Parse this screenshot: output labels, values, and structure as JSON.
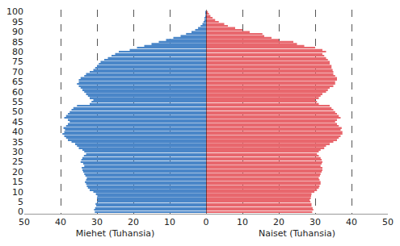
{
  "chart_data": [
    {
      "type": "bar",
      "orientation": "horizontal",
      "x_label": "Miehet (Tuhansia)",
      "color": "#4a86c8",
      "grid": true,
      "x": [
        0,
        1,
        2,
        3,
        4,
        5,
        6,
        7,
        8,
        9,
        10,
        11,
        12,
        13,
        14,
        15,
        16,
        17,
        18,
        19,
        20,
        21,
        22,
        23,
        24,
        25,
        26,
        27,
        28,
        29,
        30,
        31,
        32,
        33,
        34,
        35,
        36,
        37,
        38,
        39,
        40,
        41,
        42,
        43,
        44,
        45,
        46,
        47,
        48,
        49,
        50,
        51,
        52,
        53,
        54,
        55,
        56,
        57,
        58,
        59,
        60,
        61,
        62,
        63,
        64,
        65,
        66,
        67,
        68,
        69,
        70,
        71,
        72,
        73,
        74,
        75,
        76,
        77,
        78,
        79,
        80,
        81,
        82,
        83,
        84,
        85,
        86,
        87,
        88,
        89,
        90,
        91,
        92,
        93,
        94,
        95,
        96,
        97,
        98,
        99,
        100
      ],
      "values": [
        30.6,
        30.8,
        30.5,
        30.2,
        30.4,
        30.0,
        29.8,
        30.0,
        29.9,
        30.3,
        31.0,
        32.0,
        32.5,
        32.8,
        33.0,
        33.3,
        33.0,
        32.8,
        33.2,
        33.5,
        33.8,
        34.0,
        34.2,
        33.5,
        33.8,
        34.5,
        34.3,
        34.0,
        33.6,
        33.0,
        33.5,
        34.0,
        35.0,
        35.5,
        36.0,
        37.0,
        38.0,
        38.5,
        39.0,
        39.5,
        39.0,
        38.8,
        39.2,
        38.5,
        38.0,
        37.5,
        38.0,
        39.0,
        38.5,
        38.0,
        37.5,
        37.0,
        36.5,
        35.5,
        32.0,
        31.5,
        31.0,
        32.0,
        32.5,
        33.0,
        33.5,
        34.0,
        34.5,
        35.0,
        35.5,
        35.0,
        35.0,
        34.5,
        33.5,
        33.0,
        32.0,
        31.0,
        30.5,
        30.0,
        29.5,
        29.0,
        28.0,
        27.0,
        26.0,
        25.0,
        24.0,
        21.0,
        19.0,
        17.0,
        15.0,
        13.0,
        11.0,
        9.0,
        7.0,
        5.5,
        4.0,
        3.0,
        2.2,
        1.5,
        1.0,
        0.7,
        0.4,
        0.3,
        0.2,
        0.1,
        0.1
      ],
      "xlim": [
        50,
        0
      ],
      "xticks": [
        50,
        40,
        30,
        20,
        10
      ],
      "ylim": [
        -1,
        101
      ],
      "yticks": [
        0,
        5,
        10,
        15,
        20,
        25,
        30,
        35,
        40,
        45,
        50,
        55,
        60,
        65,
        70,
        75,
        80,
        85,
        90,
        95,
        100
      ]
    },
    {
      "type": "bar",
      "orientation": "horizontal",
      "x_label": "Naiset (Tuhansia)",
      "color": "#e8676d",
      "grid": true,
      "tick_labels": "x",
      "x": [
        0,
        1,
        2,
        3,
        4,
        5,
        6,
        7,
        8,
        9,
        10,
        11,
        12,
        13,
        14,
        15,
        16,
        17,
        18,
        19,
        20,
        21,
        22,
        23,
        24,
        25,
        26,
        27,
        28,
        29,
        30,
        31,
        32,
        33,
        34,
        35,
        36,
        37,
        38,
        39,
        40,
        41,
        42,
        43,
        44,
        45,
        46,
        47,
        48,
        49,
        50,
        51,
        52,
        53,
        54,
        55,
        56,
        57,
        58,
        59,
        60,
        61,
        62,
        63,
        64,
        65,
        66,
        67,
        68,
        69,
        70,
        71,
        72,
        73,
        74,
        75,
        76,
        77,
        78,
        79,
        80,
        81,
        82,
        83,
        84,
        85,
        86,
        87,
        88,
        89,
        90,
        91,
        92,
        93,
        94,
        95,
        96,
        97,
        98,
        99,
        100
      ],
      "values": [
        29.2,
        29.5,
        29.3,
        29.0,
        29.0,
        28.7,
        28.5,
        28.8,
        28.9,
        29.0,
        29.8,
        30.5,
        31.0,
        31.2,
        31.5,
        31.5,
        31.2,
        31.0,
        31.3,
        31.5,
        31.8,
        32.0,
        32.0,
        31.5,
        31.8,
        32.0,
        31.8,
        31.5,
        31.0,
        30.5,
        31.0,
        31.5,
        32.5,
        33.0,
        34.0,
        35.0,
        36.0,
        36.5,
        37.0,
        37.5,
        37.5,
        37.0,
        37.3,
        36.5,
        36.0,
        35.5,
        36.0,
        37.0,
        36.5,
        36.0,
        35.5,
        35.0,
        34.5,
        34.0,
        31.0,
        30.5,
        30.0,
        31.0,
        31.5,
        32.0,
        33.0,
        33.5,
        34.0,
        35.0,
        35.5,
        35.5,
        36.0,
        36.0,
        35.5,
        35.0,
        35.0,
        34.8,
        34.5,
        34.5,
        34.0,
        34.0,
        33.5,
        33.0,
        32.5,
        32.0,
        33.0,
        32.0,
        30.0,
        27.0,
        25.0,
        24.0,
        20.0,
        18.0,
        16.0,
        15.5,
        12.0,
        10.0,
        8.0,
        6.0,
        5.0,
        3.5,
        2.5,
        1.8,
        1.2,
        0.8,
        0.5
      ],
      "xlim": [
        0,
        50
      ],
      "xticks": [
        0,
        10,
        20,
        30,
        40,
        50
      ],
      "ylim": [
        -1,
        101
      ]
    }
  ]
}
